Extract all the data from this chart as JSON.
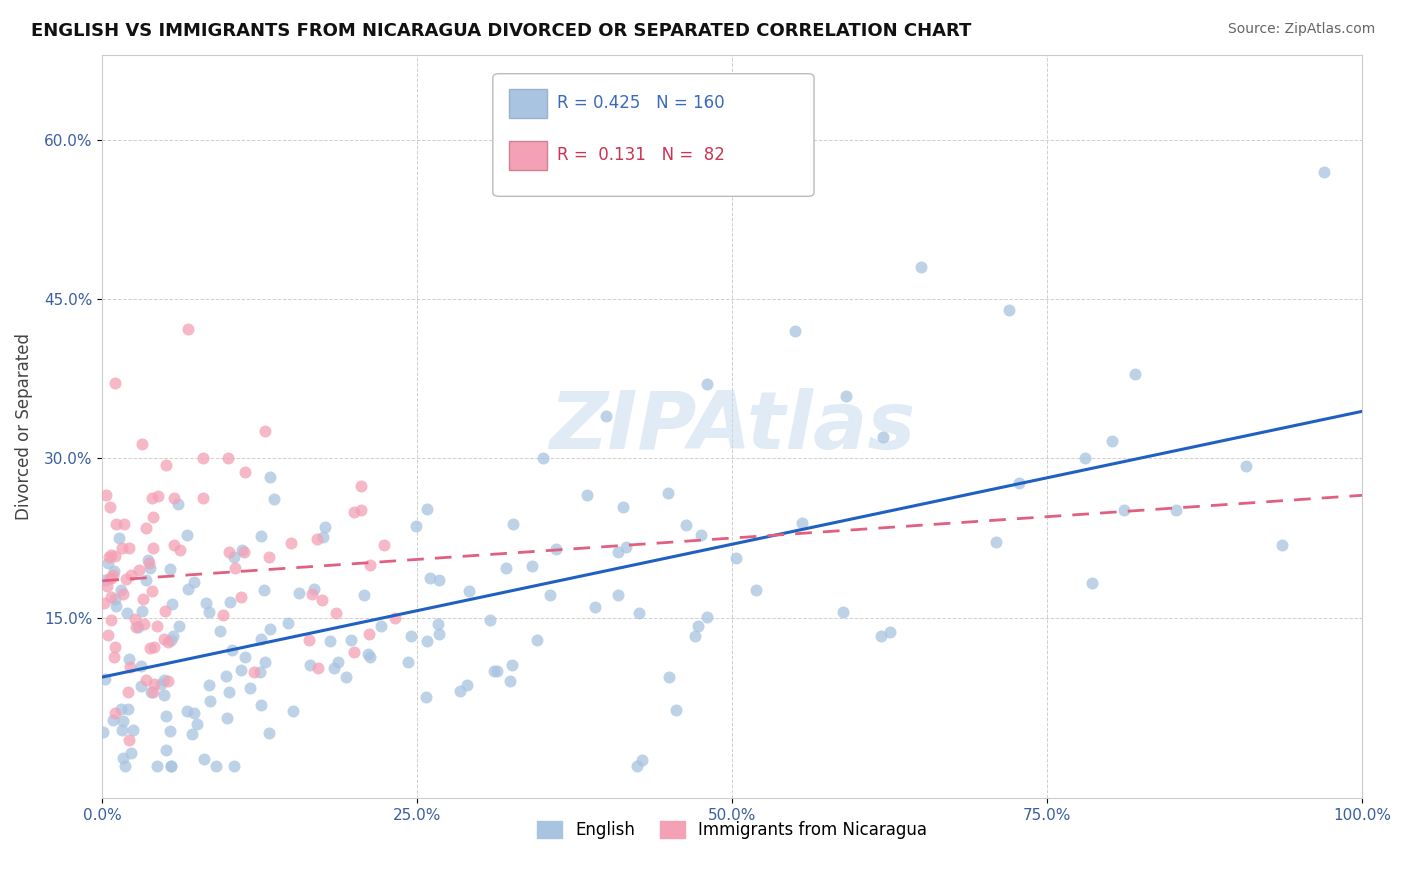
{
  "title": "ENGLISH VS IMMIGRANTS FROM NICARAGUA DIVORCED OR SEPARATED CORRELATION CHART",
  "source": "Source: ZipAtlas.com",
  "ylabel": "Divorced or Separated",
  "watermark": "ZIPAtlas",
  "legend1_label": "English",
  "legend2_label": "Immigrants from Nicaragua",
  "R1": 0.425,
  "N1": 160,
  "R2": 0.131,
  "N2": 82,
  "color1": "#a8c4e0",
  "color2": "#f4a0b5",
  "line1_color": "#2060c0",
  "line2_color": "#e06080",
  "xlim": [
    0.0,
    1.0
  ],
  "ylim": [
    -0.02,
    0.68
  ],
  "yticks": [
    0.0,
    0.15,
    0.3,
    0.45,
    0.6
  ],
  "xticks": [
    0.0,
    0.25,
    0.5,
    0.75,
    1.0
  ]
}
